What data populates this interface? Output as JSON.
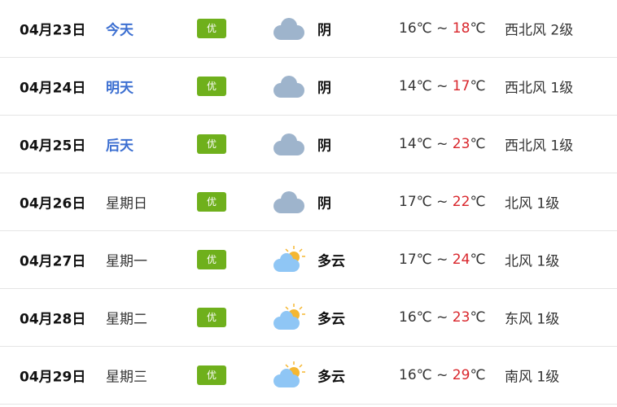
{
  "colors": {
    "badge": "#6fb01c",
    "highlight_day": "#3c6fd1",
    "high_temp": "#d9262c",
    "cloud": "#9eb4cc",
    "partly_cloud": "#8fc6f5",
    "sun": "#f5b731"
  },
  "forecast": [
    {
      "date": "04月23日",
      "day": "今天",
      "highlight": true,
      "aqi": "优",
      "icon": "cloudy-icon",
      "condition": "阴",
      "low": "16℃",
      "sep": " ~ ",
      "high": "18",
      "unit": "℃",
      "wind": "西北风 2级"
    },
    {
      "date": "04月24日",
      "day": "明天",
      "highlight": true,
      "aqi": "优",
      "icon": "cloudy-icon",
      "condition": "阴",
      "low": "14℃",
      "sep": " ~ ",
      "high": "17",
      "unit": "℃",
      "wind": "西北风 1级"
    },
    {
      "date": "04月25日",
      "day": "后天",
      "highlight": true,
      "aqi": "优",
      "icon": "cloudy-icon",
      "condition": "阴",
      "low": "14℃",
      "sep": " ~ ",
      "high": "23",
      "unit": "℃",
      "wind": "西北风 1级"
    },
    {
      "date": "04月26日",
      "day": "星期日",
      "highlight": false,
      "aqi": "优",
      "icon": "cloudy-icon",
      "condition": "阴",
      "low": "17℃",
      "sep": " ~ ",
      "high": "22",
      "unit": "℃",
      "wind": "北风 1级"
    },
    {
      "date": "04月27日",
      "day": "星期一",
      "highlight": false,
      "aqi": "优",
      "icon": "partly-cloudy-icon",
      "condition": "多云",
      "low": "17℃",
      "sep": " ~ ",
      "high": "24",
      "unit": "℃",
      "wind": "北风 1级"
    },
    {
      "date": "04月28日",
      "day": "星期二",
      "highlight": false,
      "aqi": "优",
      "icon": "partly-cloudy-icon",
      "condition": "多云",
      "low": "16℃",
      "sep": " ~ ",
      "high": "23",
      "unit": "℃",
      "wind": "东风 1级"
    },
    {
      "date": "04月29日",
      "day": "星期三",
      "highlight": false,
      "aqi": "优",
      "icon": "partly-cloudy-icon",
      "condition": "多云",
      "low": "16℃",
      "sep": " ~ ",
      "high": "29",
      "unit": "℃",
      "wind": "南风 1级"
    }
  ]
}
